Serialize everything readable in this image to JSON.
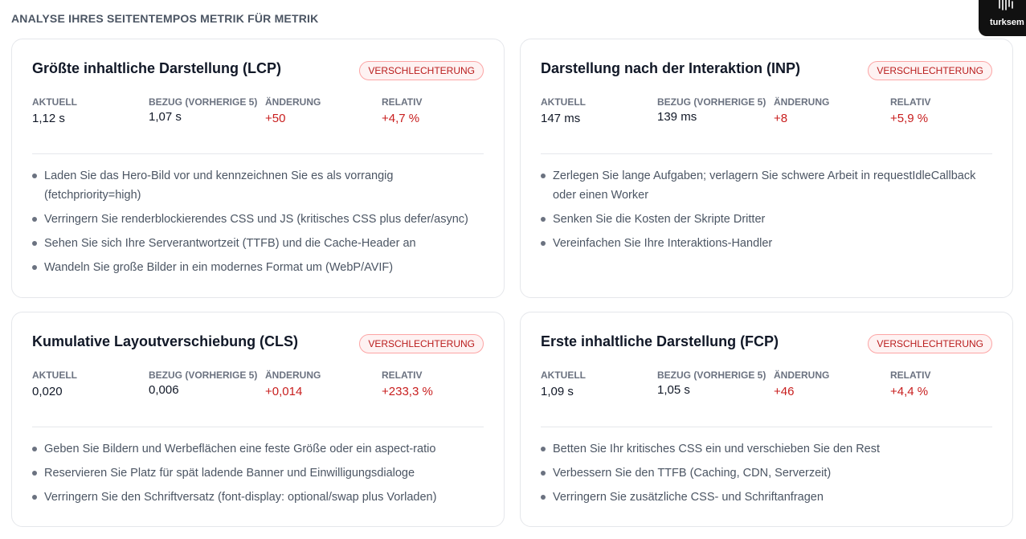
{
  "section_title": "ANALYSE IHRES SEITENTEMPOS METRIK FÜR METRIK",
  "brand": {
    "name": "turksem",
    "icon": "fingerprint-icon"
  },
  "labels": {
    "current": "AKTUELL",
    "reference": "BEZUG (VORHERIGE 5)",
    "change": "ÄNDERUNG",
    "relative": "RELATIV"
  },
  "colors": {
    "negative": "#c81e1e",
    "badge_border": "#fca5a5",
    "badge_bg": "#fef2f2"
  },
  "cards": [
    {
      "title": "Größte inhaltliche Darstellung (LCP)",
      "badge": "VERSCHLECHTERUNG",
      "current": "1,12 s",
      "reference": "1,07 s",
      "change": "+50",
      "relative": "+4,7 %",
      "tips": [
        "Laden Sie das Hero-Bild vor und kennzeichnen Sie es als vorrangig (fetchpriority=high)",
        "Verringern Sie renderblockierendes CSS und JS (kritisches CSS plus defer/async)",
        "Sehen Sie sich Ihre Serverantwortzeit (TTFB) und die Cache-Header an",
        "Wandeln Sie große Bilder in ein modernes Format um (WebP/AVIF)"
      ]
    },
    {
      "title": "Darstellung nach der Interaktion (INP)",
      "badge": "VERSCHLECHTERUNG",
      "current": "147 ms",
      "reference": "139 ms",
      "change": "+8",
      "relative": "+5,9 %",
      "tips": [
        "Zerlegen Sie lange Aufgaben; verlagern Sie schwere Arbeit in requestIdleCallback oder einen Worker",
        "Senken Sie die Kosten der Skripte Dritter",
        "Vereinfachen Sie Ihre Interaktions-Handler"
      ]
    },
    {
      "title": "Kumulative Layoutverschiebung (CLS)",
      "badge": "VERSCHLECHTERUNG",
      "current": "0,020",
      "reference": "0,006",
      "change": "+0,014",
      "relative": "+233,3 %",
      "tips": [
        "Geben Sie Bildern und Werbeflächen eine feste Größe oder ein aspect-ratio",
        "Reservieren Sie Platz für spät ladende Banner und Einwilligungsdialoge",
        "Verringern Sie den Schriftversatz (font-display: optional/swap plus Vorladen)"
      ]
    },
    {
      "title": "Erste inhaltliche Darstellung (FCP)",
      "badge": "VERSCHLECHTERUNG",
      "current": "1,09 s",
      "reference": "1,05 s",
      "change": "+46",
      "relative": "+4,4 %",
      "tips": [
        "Betten Sie Ihr kritisches CSS ein und verschieben Sie den Rest",
        "Verbessern Sie den TTFB (Caching, CDN, Serverzeit)",
        "Verringern Sie zusätzliche CSS- und Schriftanfragen"
      ]
    }
  ]
}
